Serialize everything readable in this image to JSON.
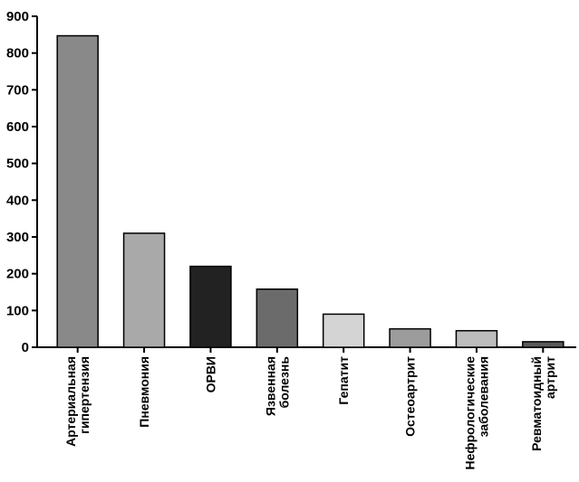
{
  "chart_data": {
    "type": "bar",
    "title": "",
    "xlabel": "",
    "ylabel": "",
    "ylim": [
      0,
      900
    ],
    "yticks": [
      0,
      100,
      200,
      300,
      400,
      500,
      600,
      700,
      800,
      900
    ],
    "grid": false,
    "legend": "none",
    "categories": [
      [
        "Артериальная",
        "гипертензия"
      ],
      [
        "Пневмония"
      ],
      [
        "ОРВИ"
      ],
      [
        "Язвенная",
        "болезнь"
      ],
      [
        "Гепатит"
      ],
      [
        "Остеоартрит"
      ],
      [
        "Нефрологические",
        "заболевания"
      ],
      [
        "Ревматоидный",
        "артрит"
      ]
    ],
    "values": [
      847,
      310,
      220,
      158,
      90,
      50,
      45,
      15
    ],
    "colors": [
      "#898989",
      "#a9a9a9",
      "#222222",
      "#6b6b6b",
      "#d4d4d4",
      "#9c9c9c",
      "#bdbdbd",
      "#5a5a5a"
    ]
  }
}
